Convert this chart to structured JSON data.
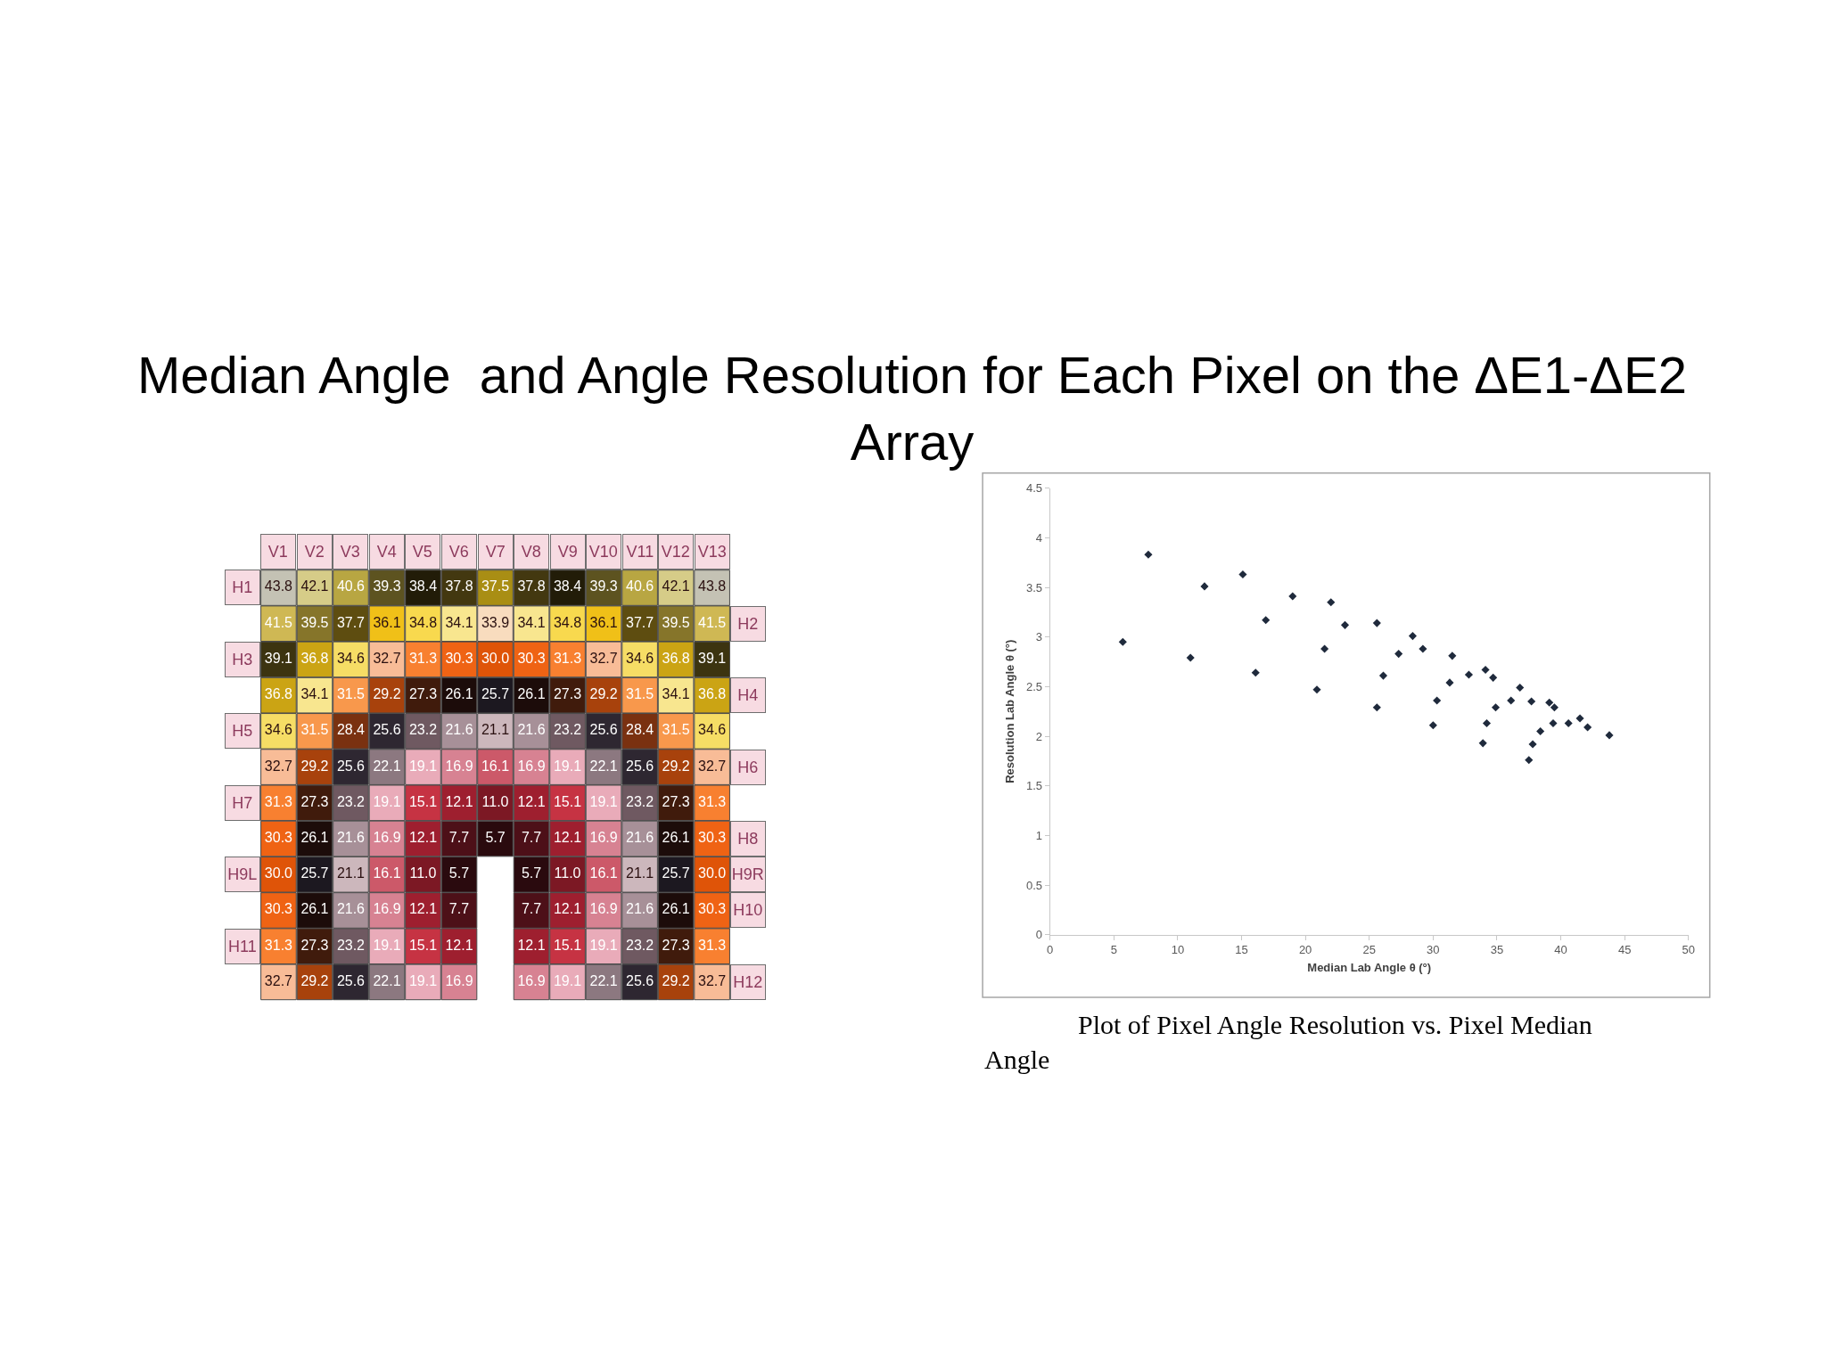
{
  "chart_data": [
    {
      "type": "heatmap",
      "title": "Median Angle  and Angle Resolution for Each Pixel on the ΔE1-ΔE2 Array",
      "categories": [
        "V1",
        "V2",
        "V3",
        "V4",
        "V5",
        "V6",
        "V7",
        "V8",
        "V9",
        "V10",
        "V11",
        "V12",
        "V13"
      ],
      "y_categories": [
        "H1",
        null,
        "H3",
        null,
        "H5",
        null,
        "H7",
        null,
        "H9L",
        null,
        "H11",
        null
      ],
      "y2_categories": [
        null,
        "H2",
        null,
        "H4",
        null,
        "H6",
        null,
        "H8",
        "H9R",
        "H10",
        null,
        "H12"
      ],
      "cells": [
        [
          43.8,
          42.1,
          40.6,
          39.3,
          38.4,
          37.8,
          37.5,
          37.8,
          38.4,
          39.3,
          40.6,
          42.1,
          43.8
        ],
        [
          41.5,
          39.5,
          37.7,
          36.1,
          34.8,
          34.1,
          33.9,
          34.1,
          34.8,
          36.1,
          37.7,
          39.5,
          41.5
        ],
        [
          39.1,
          36.8,
          34.6,
          32.7,
          31.3,
          30.3,
          30.0,
          30.3,
          31.3,
          32.7,
          34.6,
          36.8,
          39.1
        ],
        [
          36.8,
          34.1,
          31.5,
          29.2,
          27.3,
          26.1,
          25.7,
          26.1,
          27.3,
          29.2,
          31.5,
          34.1,
          36.8
        ],
        [
          34.6,
          31.5,
          28.4,
          25.6,
          23.2,
          21.6,
          21.1,
          21.6,
          23.2,
          25.6,
          28.4,
          31.5,
          34.6
        ],
        [
          32.7,
          29.2,
          25.6,
          22.1,
          19.1,
          16.9,
          16.1,
          16.9,
          19.1,
          22.1,
          25.6,
          29.2,
          32.7
        ],
        [
          31.3,
          27.3,
          23.2,
          19.1,
          15.1,
          12.1,
          11.0,
          12.1,
          15.1,
          19.1,
          23.2,
          27.3,
          31.3
        ],
        [
          30.3,
          26.1,
          21.6,
          16.9,
          12.1,
          7.7,
          5.7,
          7.7,
          12.1,
          16.9,
          21.6,
          26.1,
          30.3
        ],
        [
          30.0,
          25.7,
          21.1,
          16.1,
          11.0,
          5.7,
          null,
          5.7,
          11.0,
          16.1,
          21.1,
          25.7,
          30.0
        ],
        [
          30.3,
          26.1,
          21.6,
          16.9,
          12.1,
          7.7,
          null,
          7.7,
          12.1,
          16.9,
          21.6,
          26.1,
          30.3
        ],
        [
          31.3,
          27.3,
          23.2,
          19.1,
          15.1,
          12.1,
          null,
          12.1,
          15.1,
          19.1,
          23.2,
          27.3,
          31.3
        ],
        [
          32.7,
          29.2,
          25.6,
          22.1,
          19.1,
          16.9,
          null,
          16.9,
          19.1,
          22.1,
          25.6,
          29.2,
          32.7
        ]
      ],
      "cell_labels": [
        [
          "43.8",
          "42.1",
          "40.6",
          "39.3",
          "38.4",
          "37.8",
          "37.5",
          "37.8",
          "38.4",
          "39.3",
          "40.6",
          "42.1",
          "43.8"
        ],
        [
          "41.5",
          "39.5",
          "37.7",
          "36.1",
          "34.8",
          "34.1",
          "33.9",
          "34.1",
          "34.8",
          "36.1",
          "37.7",
          "39.5",
          "41.5"
        ],
        [
          "39.1",
          "36.8",
          "34.6",
          "32.7",
          "31.3",
          "30.3",
          "30.0",
          "30.3",
          "31.3",
          "32.7",
          "34.6",
          "36.8",
          "39.1"
        ],
        [
          "36.8",
          "34.1",
          "31.5",
          "29.2",
          "27.3",
          "26.1",
          "25.7",
          "26.1",
          "27.3",
          "29.2",
          "31.5",
          "34.1",
          "36.8"
        ],
        [
          "34.6",
          "31.5",
          "28.4",
          "25.6",
          "23.2",
          "21.6",
          "21.1",
          "21.6",
          "23.2",
          "25.6",
          "28.4",
          "31.5",
          "34.6"
        ],
        [
          "32.7",
          "29.2",
          "25.6",
          "22.1",
          "19.1",
          "16.9",
          "16.1",
          "16.9",
          "19.1",
          "22.1",
          "25.6",
          "29.2",
          "32.7"
        ],
        [
          "31.3",
          "27.3",
          "23.2",
          "19.1",
          "15.1",
          "12.1",
          "11.0",
          "12.1",
          "15.1",
          "19.1",
          "23.2",
          "27.3",
          "31.3"
        ],
        [
          "30.3",
          "26.1",
          "21.6",
          "16.9",
          "12.1",
          "7.7",
          "5.7",
          "7.7",
          "12.1",
          "16.9",
          "21.6",
          "26.1",
          "30.3"
        ],
        [
          "30.0",
          "25.7",
          "21.1",
          "16.1",
          "11.0",
          "5.7",
          null,
          "5.7",
          "11.0",
          "16.1",
          "21.1",
          "25.7",
          "30.0"
        ],
        [
          "30.3",
          "26.1",
          "21.6",
          "16.9",
          "12.1",
          "7.7",
          null,
          "7.7",
          "12.1",
          "16.9",
          "21.6",
          "26.1",
          "30.3"
        ],
        [
          "31.3",
          "27.3",
          "23.2",
          "19.1",
          "15.1",
          "12.1",
          null,
          "12.1",
          "15.1",
          "19.1",
          "23.2",
          "27.3",
          "31.3"
        ],
        [
          "32.7",
          "29.2",
          "25.6",
          "22.1",
          "19.1",
          "16.9",
          null,
          "16.9",
          "19.1",
          "22.1",
          "25.6",
          "29.2",
          "32.7"
        ]
      ],
      "data_labels": true
    },
    {
      "type": "scatter",
      "xlabel": "Median Lab Angle θ (°)",
      "ylabel": "Resolution Lab Angle θ (°)",
      "x": [
        5.7,
        7.7,
        11.0,
        12.1,
        15.1,
        16.1,
        16.9,
        19.0,
        20.9,
        21.5,
        22.0,
        23.1,
        25.6,
        26.1,
        25.6,
        27.3,
        28.4,
        29.2,
        30.0,
        30.3,
        31.5,
        31.3,
        32.8,
        34.1,
        34.7,
        33.9,
        34.2,
        34.9,
        36.1,
        36.8,
        37.7,
        37.5,
        37.8,
        38.4,
        39.1,
        39.5,
        39.4,
        40.6,
        41.5,
        42.1,
        43.8
      ],
      "values": [
        2.95,
        3.83,
        2.79,
        3.51,
        3.63,
        2.64,
        3.17,
        3.41,
        2.47,
        2.88,
        3.35,
        3.12,
        3.14,
        2.61,
        2.29,
        2.83,
        3.01,
        2.88,
        2.11,
        2.36,
        2.81,
        2.54,
        2.62,
        2.67,
        2.59,
        1.93,
        2.13,
        2.29,
        2.36,
        2.49,
        2.35,
        1.76,
        1.92,
        2.05,
        2.34,
        2.29,
        2.13,
        2.13,
        2.18,
        2.09,
        2.01
      ],
      "color": "#1f2a3c",
      "marker": "diamond",
      "xlim": [
        0,
        50
      ],
      "xticks": [
        0,
        5,
        10,
        15,
        20,
        25,
        30,
        35,
        40,
        45,
        50
      ],
      "ylim": [
        0,
        4.5
      ],
      "yticks": [
        0,
        0.5,
        1,
        1.5,
        2,
        2.5,
        3,
        3.5,
        4,
        4.5
      ],
      "annotations": [
        "Plot of Pixel Angle Resolution vs. Pixel Median Angle"
      ]
    }
  ]
}
